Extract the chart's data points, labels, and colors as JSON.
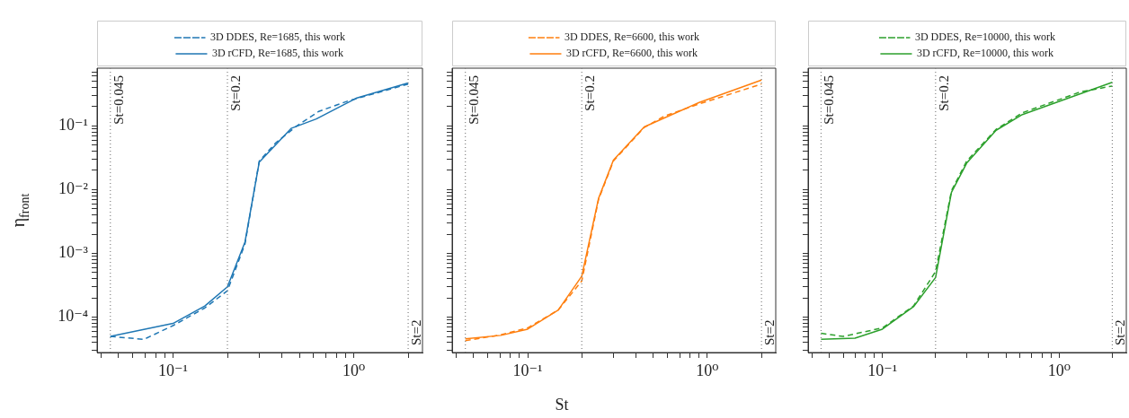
{
  "chart_data": [
    {
      "type": "line",
      "ylabel": "η$_{front}$",
      "log": "xy",
      "legend": "top",
      "xlim": [
        0.038,
        2.4
      ],
      "ylim": [
        2.8e-05,
        0.8
      ],
      "xticks": [
        {
          "value": 0.04,
          "label": null
        },
        {
          "value": 0.05,
          "label": null
        },
        {
          "value": 0.06,
          "label": null
        },
        {
          "value": 0.07,
          "label": null
        },
        {
          "value": 0.08,
          "label": null
        },
        {
          "value": 0.09,
          "label": null
        },
        {
          "value": 0.1,
          "label": "10⁻¹"
        },
        {
          "value": 0.2,
          "label": null
        },
        {
          "value": 0.3,
          "label": null
        },
        {
          "value": 0.4,
          "label": null
        },
        {
          "value": 0.5,
          "label": null
        },
        {
          "value": 0.6,
          "label": null
        },
        {
          "value": 0.7,
          "label": null
        },
        {
          "value": 0.8,
          "label": null
        },
        {
          "value": 0.9,
          "label": null
        },
        {
          "value": 1,
          "label": "10⁰"
        },
        {
          "value": 2,
          "label": null
        }
      ],
      "yticks": [
        {
          "value": 3e-05,
          "label": null
        },
        {
          "value": 4e-05,
          "label": null
        },
        {
          "value": 5e-05,
          "label": null
        },
        {
          "value": 6e-05,
          "label": null
        },
        {
          "value": 7e-05,
          "label": null
        },
        {
          "value": 8e-05,
          "label": null
        },
        {
          "value": 9e-05,
          "label": null
        },
        {
          "value": 0.0001,
          "label": "10⁻⁴"
        },
        {
          "value": 0.0002,
          "label": null
        },
        {
          "value": 0.0003,
          "label": null
        },
        {
          "value": 0.0004,
          "label": null
        },
        {
          "value": 0.0005,
          "label": null
        },
        {
          "value": 0.0006,
          "label": null
        },
        {
          "value": 0.0007,
          "label": null
        },
        {
          "value": 0.0008,
          "label": null
        },
        {
          "value": 0.0009,
          "label": null
        },
        {
          "value": 0.001,
          "label": "10⁻³"
        },
        {
          "value": 0.002,
          "label": null
        },
        {
          "value": 0.003,
          "label": null
        },
        {
          "value": 0.004,
          "label": null
        },
        {
          "value": 0.005,
          "label": null
        },
        {
          "value": 0.006,
          "label": null
        },
        {
          "value": 0.007,
          "label": null
        },
        {
          "value": 0.008,
          "label": null
        },
        {
          "value": 0.009,
          "label": null
        },
        {
          "value": 0.01,
          "label": "10⁻²"
        },
        {
          "value": 0.02,
          "label": null
        },
        {
          "value": 0.03,
          "label": null
        },
        {
          "value": 0.04,
          "label": null
        },
        {
          "value": 0.05,
          "label": null
        },
        {
          "value": 0.06,
          "label": null
        },
        {
          "value": 0.07,
          "label": null
        },
        {
          "value": 0.08,
          "label": null
        },
        {
          "value": 0.09,
          "label": null
        },
        {
          "value": 0.1,
          "label": "10⁻¹"
        },
        {
          "value": 0.2,
          "label": null
        },
        {
          "value": 0.3,
          "label": null
        },
        {
          "value": 0.4,
          "label": null
        },
        {
          "value": 0.5,
          "label": null
        },
        {
          "value": 0.6,
          "label": null
        },
        {
          "value": 0.7,
          "label": null
        }
      ],
      "ref_lines": [
        {
          "axis": "x",
          "value": 0.045,
          "label": "St=0.045",
          "color": "#808080",
          "line_style": "dotted"
        },
        {
          "axis": "x",
          "value": 0.2,
          "label": "St=0.2",
          "color": "#808080",
          "line_style": "dotted"
        },
        {
          "axis": "x",
          "value": 2,
          "label": "St=2",
          "color": "#808080",
          "line_style": "dotted"
        }
      ],
      "series": [
        {
          "name": "3D DDES, Re=1685, this work",
          "color": "#1f77b4",
          "line_style": "dashed",
          "x": [
            0.045,
            0.069,
            0.1,
            0.15,
            0.2,
            0.25,
            0.3,
            0.37,
            0.48,
            0.64,
            0.93,
            2
          ],
          "values": [
            5e-05,
            4.5e-05,
            7.4e-05,
            0.00014,
            0.00026,
            0.0014,
            0.028,
            0.054,
            0.098,
            0.168,
            0.245,
            0.45
          ]
        },
        {
          "name": "3D rCFD, Re=1685, this work",
          "color": "#1f77b4",
          "line_style": "solid",
          "x": [
            0.045,
            0.1,
            0.15,
            0.2,
            0.25,
            0.3,
            0.45,
            0.62,
            1.03,
            2
          ],
          "values": [
            5e-05,
            8e-05,
            0.00015,
            0.0003,
            0.0015,
            0.027,
            0.091,
            0.128,
            0.27,
            0.47
          ]
        }
      ]
    },
    {
      "type": "line",
      "xlabel": "St",
      "log": "xy",
      "legend": "top",
      "tick_labels": "x",
      "xlim": [
        0.038,
        2.4
      ],
      "ylim": [
        2.8e-05,
        0.8
      ],
      "xticks": [
        {
          "value": 0.04,
          "label": null
        },
        {
          "value": 0.05,
          "label": null
        },
        {
          "value": 0.06,
          "label": null
        },
        {
          "value": 0.07,
          "label": null
        },
        {
          "value": 0.08,
          "label": null
        },
        {
          "value": 0.09,
          "label": null
        },
        {
          "value": 0.1,
          "label": "10⁻¹"
        },
        {
          "value": 0.2,
          "label": null
        },
        {
          "value": 0.3,
          "label": null
        },
        {
          "value": 0.4,
          "label": null
        },
        {
          "value": 0.5,
          "label": null
        },
        {
          "value": 0.6,
          "label": null
        },
        {
          "value": 0.7,
          "label": null
        },
        {
          "value": 0.8,
          "label": null
        },
        {
          "value": 0.9,
          "label": null
        },
        {
          "value": 1,
          "label": "10⁰"
        },
        {
          "value": 2,
          "label": null
        }
      ],
      "yticks": [
        {
          "value": 3e-05,
          "label": null
        },
        {
          "value": 4e-05,
          "label": null
        },
        {
          "value": 5e-05,
          "label": null
        },
        {
          "value": 6e-05,
          "label": null
        },
        {
          "value": 7e-05,
          "label": null
        },
        {
          "value": 8e-05,
          "label": null
        },
        {
          "value": 9e-05,
          "label": null
        },
        {
          "value": 0.0001,
          "label": null
        },
        {
          "value": 0.0002,
          "label": null
        },
        {
          "value": 0.0003,
          "label": null
        },
        {
          "value": 0.0004,
          "label": null
        },
        {
          "value": 0.0005,
          "label": null
        },
        {
          "value": 0.0006,
          "label": null
        },
        {
          "value": 0.0007,
          "label": null
        },
        {
          "value": 0.0008,
          "label": null
        },
        {
          "value": 0.0009,
          "label": null
        },
        {
          "value": 0.001,
          "label": null
        },
        {
          "value": 0.002,
          "label": null
        },
        {
          "value": 0.003,
          "label": null
        },
        {
          "value": 0.004,
          "label": null
        },
        {
          "value": 0.005,
          "label": null
        },
        {
          "value": 0.006,
          "label": null
        },
        {
          "value": 0.007,
          "label": null
        },
        {
          "value": 0.008,
          "label": null
        },
        {
          "value": 0.009,
          "label": null
        },
        {
          "value": 0.01,
          "label": null
        },
        {
          "value": 0.02,
          "label": null
        },
        {
          "value": 0.03,
          "label": null
        },
        {
          "value": 0.04,
          "label": null
        },
        {
          "value": 0.05,
          "label": null
        },
        {
          "value": 0.06,
          "label": null
        },
        {
          "value": 0.07,
          "label": null
        },
        {
          "value": 0.08,
          "label": null
        },
        {
          "value": 0.09,
          "label": null
        },
        {
          "value": 0.1,
          "label": null
        },
        {
          "value": 0.2,
          "label": null
        },
        {
          "value": 0.3,
          "label": null
        },
        {
          "value": 0.4,
          "label": null
        },
        {
          "value": 0.5,
          "label": null
        },
        {
          "value": 0.6,
          "label": null
        },
        {
          "value": 0.7,
          "label": null
        }
      ],
      "ref_lines": [
        {
          "axis": "x",
          "value": 0.045,
          "label": "St=0.045",
          "color": "#808080",
          "line_style": "dotted"
        },
        {
          "axis": "x",
          "value": 0.2,
          "label": "St=0.2",
          "color": "#808080",
          "line_style": "dotted"
        },
        {
          "axis": "x",
          "value": 2,
          "label": "St=2",
          "color": "#808080",
          "line_style": "dotted"
        }
      ],
      "series": [
        {
          "name": "3D DDES, Re=6600, this work",
          "color": "#ff7f0e",
          "line_style": "dashed",
          "x": [
            0.045,
            0.071,
            0.1,
            0.148,
            0.2,
            0.248,
            0.3,
            0.445,
            0.58,
            0.9,
            2
          ],
          "values": [
            4.3e-05,
            5.3e-05,
            6.8e-05,
            0.00013,
            0.00037,
            0.007,
            0.028,
            0.094,
            0.143,
            0.22,
            0.45
          ]
        },
        {
          "name": "3D rCFD, Re=6600, this work",
          "color": "#ff7f0e",
          "line_style": "solid",
          "x": [
            0.045,
            0.071,
            0.1,
            0.148,
            0.2,
            0.248,
            0.3,
            0.445,
            0.9,
            2
          ],
          "values": [
            4.6e-05,
            5.2e-05,
            6.5e-05,
            0.00013,
            0.00044,
            0.0073,
            0.029,
            0.096,
            0.232,
            0.52
          ]
        }
      ]
    },
    {
      "type": "line",
      "log": "xy",
      "legend": "top",
      "tick_labels": "x",
      "xlim": [
        0.038,
        2.4
      ],
      "ylim": [
        2.8e-05,
        0.8
      ],
      "xticks": [
        {
          "value": 0.04,
          "label": null
        },
        {
          "value": 0.05,
          "label": null
        },
        {
          "value": 0.06,
          "label": null
        },
        {
          "value": 0.07,
          "label": null
        },
        {
          "value": 0.08,
          "label": null
        },
        {
          "value": 0.09,
          "label": null
        },
        {
          "value": 0.1,
          "label": "10⁻¹"
        },
        {
          "value": 0.2,
          "label": null
        },
        {
          "value": 0.3,
          "label": null
        },
        {
          "value": 0.4,
          "label": null
        },
        {
          "value": 0.5,
          "label": null
        },
        {
          "value": 0.6,
          "label": null
        },
        {
          "value": 0.7,
          "label": null
        },
        {
          "value": 0.8,
          "label": null
        },
        {
          "value": 0.9,
          "label": null
        },
        {
          "value": 1,
          "label": "10⁰"
        },
        {
          "value": 2,
          "label": null
        }
      ],
      "yticks": [
        {
          "value": 3e-05,
          "label": null
        },
        {
          "value": 4e-05,
          "label": null
        },
        {
          "value": 5e-05,
          "label": null
        },
        {
          "value": 6e-05,
          "label": null
        },
        {
          "value": 7e-05,
          "label": null
        },
        {
          "value": 8e-05,
          "label": null
        },
        {
          "value": 9e-05,
          "label": null
        },
        {
          "value": 0.0001,
          "label": null
        },
        {
          "value": 0.0002,
          "label": null
        },
        {
          "value": 0.0003,
          "label": null
        },
        {
          "value": 0.0004,
          "label": null
        },
        {
          "value": 0.0005,
          "label": null
        },
        {
          "value": 0.0006,
          "label": null
        },
        {
          "value": 0.0007,
          "label": null
        },
        {
          "value": 0.0008,
          "label": null
        },
        {
          "value": 0.0009,
          "label": null
        },
        {
          "value": 0.001,
          "label": null
        },
        {
          "value": 0.002,
          "label": null
        },
        {
          "value": 0.003,
          "label": null
        },
        {
          "value": 0.004,
          "label": null
        },
        {
          "value": 0.005,
          "label": null
        },
        {
          "value": 0.006,
          "label": null
        },
        {
          "value": 0.007,
          "label": null
        },
        {
          "value": 0.008,
          "label": null
        },
        {
          "value": 0.009,
          "label": null
        },
        {
          "value": 0.01,
          "label": null
        },
        {
          "value": 0.02,
          "label": null
        },
        {
          "value": 0.03,
          "label": null
        },
        {
          "value": 0.04,
          "label": null
        },
        {
          "value": 0.05,
          "label": null
        },
        {
          "value": 0.06,
          "label": null
        },
        {
          "value": 0.07,
          "label": null
        },
        {
          "value": 0.08,
          "label": null
        },
        {
          "value": 0.09,
          "label": null
        },
        {
          "value": 0.1,
          "label": null
        },
        {
          "value": 0.2,
          "label": null
        },
        {
          "value": 0.3,
          "label": null
        },
        {
          "value": 0.4,
          "label": null
        },
        {
          "value": 0.5,
          "label": null
        },
        {
          "value": 0.6,
          "label": null
        },
        {
          "value": 0.7,
          "label": null
        }
      ],
      "ref_lines": [
        {
          "axis": "x",
          "value": 0.045,
          "label": "St=0.045",
          "color": "#808080",
          "line_style": "dotted"
        },
        {
          "axis": "x",
          "value": 0.2,
          "label": "St=0.2",
          "color": "#808080",
          "line_style": "dotted"
        },
        {
          "axis": "x",
          "value": 2,
          "label": "St=2",
          "color": "#808080",
          "line_style": "dotted"
        }
      ],
      "series": [
        {
          "name": "3D DDES, Re=10000, this work",
          "color": "#2ca02c",
          "line_style": "dashed",
          "x": [
            0.045,
            0.06,
            0.1,
            0.15,
            0.2,
            0.246,
            0.3,
            0.44,
            0.62,
            1.32,
            2
          ],
          "values": [
            5.6e-05,
            5e-05,
            6.8e-05,
            0.00015,
            0.00052,
            0.0096,
            0.028,
            0.088,
            0.16,
            0.34,
            0.42
          ]
        },
        {
          "name": "3D rCFD, Re=10000, this work",
          "color": "#2ca02c",
          "line_style": "solid",
          "x": [
            0.045,
            0.07,
            0.1,
            0.15,
            0.2,
            0.246,
            0.3,
            0.44,
            0.62,
            2
          ],
          "values": [
            4.5e-05,
            4.7e-05,
            6.5e-05,
            0.000146,
            0.00042,
            0.0091,
            0.026,
            0.085,
            0.15,
            0.48
          ]
        }
      ]
    }
  ]
}
